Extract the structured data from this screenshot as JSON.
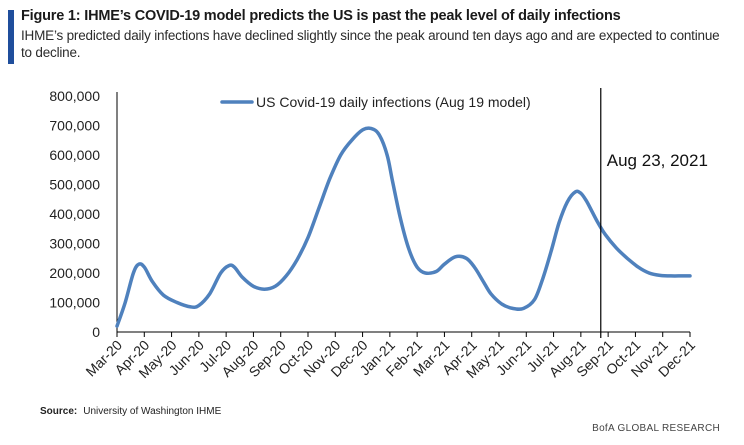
{
  "header": {
    "title": "Figure 1: IHME’s COVID-19 model predicts the US is past the peak level of daily infections",
    "subtitle": "IHME’s predicted daily infections have declined slightly since the peak around ten days ago and are expected to continue to decline."
  },
  "footer": {
    "source_label": "Source:",
    "source_text": "University of Washington IHME",
    "brand": "BofA GLOBAL RESEARCH"
  },
  "colors": {
    "series": "#4f81bd",
    "accent": "#1f4e9c",
    "axis": "#000000"
  },
  "chart_data": {
    "type": "line",
    "title": "",
    "xlabel": "",
    "ylabel": "",
    "ylim": [
      0,
      800000
    ],
    "yticks": [
      0,
      100000,
      200000,
      300000,
      400000,
      500000,
      600000,
      700000,
      800000
    ],
    "ytick_labels": [
      "0",
      "100,000",
      "200,000",
      "300,000",
      "400,000",
      "500,000",
      "600,000",
      "700,000",
      "800,000"
    ],
    "categories": [
      "Mar-20",
      "Apr-20",
      "May-20",
      "Jun-20",
      "Jul-20",
      "Aug-20",
      "Sep-20",
      "Oct-20",
      "Nov-20",
      "Dec-20",
      "Jan-21",
      "Feb-21",
      "Mar-21",
      "Apr-21",
      "May-21",
      "Jun-21",
      "Jul-21",
      "Aug-21",
      "Sep-21",
      "Oct-21",
      "Nov-21",
      "Dec-21"
    ],
    "grid": false,
    "legend_position": "top-center",
    "series": [
      {
        "name": "US Covid-19 daily infections (Aug 19 model)",
        "x": [
          0,
          0.3,
          0.6,
          0.8,
          1.0,
          1.3,
          1.7,
          2.2,
          2.7,
          3.0,
          3.4,
          3.8,
          4.1,
          4.3,
          4.6,
          5.0,
          5.4,
          5.8,
          6.2,
          6.6,
          7.0,
          7.4,
          7.8,
          8.2,
          8.6,
          9.0,
          9.3,
          9.6,
          9.9,
          10.1,
          10.4,
          10.7,
          11.0,
          11.3,
          11.7,
          12.0,
          12.4,
          12.8,
          13.1,
          13.4,
          13.7,
          14.1,
          14.5,
          14.9,
          15.3,
          15.6,
          15.9,
          16.2,
          16.5,
          16.8,
          17.0,
          17.2,
          17.4,
          17.6,
          17.9,
          18.3,
          18.7,
          19.1,
          19.5,
          19.9,
          20.3,
          20.7,
          21.0
        ],
        "values": [
          20000,
          100000,
          200000,
          230000,
          220000,
          170000,
          125000,
          100000,
          85000,
          90000,
          130000,
          200000,
          225000,
          220000,
          185000,
          155000,
          145000,
          155000,
          190000,
          245000,
          320000,
          420000,
          520000,
          600000,
          650000,
          685000,
          690000,
          670000,
          600000,
          510000,
          380000,
          280000,
          220000,
          200000,
          205000,
          230000,
          255000,
          250000,
          220000,
          175000,
          130000,
          95000,
          80000,
          80000,
          110000,
          180000,
          270000,
          370000,
          440000,
          475000,
          470000,
          445000,
          410000,
          375000,
          330000,
          285000,
          250000,
          220000,
          200000,
          192000,
          190000,
          190000,
          190000
        ]
      }
    ],
    "annotations": [
      {
        "label": "Aug 23, 2021",
        "x": 17.73
      }
    ]
  }
}
